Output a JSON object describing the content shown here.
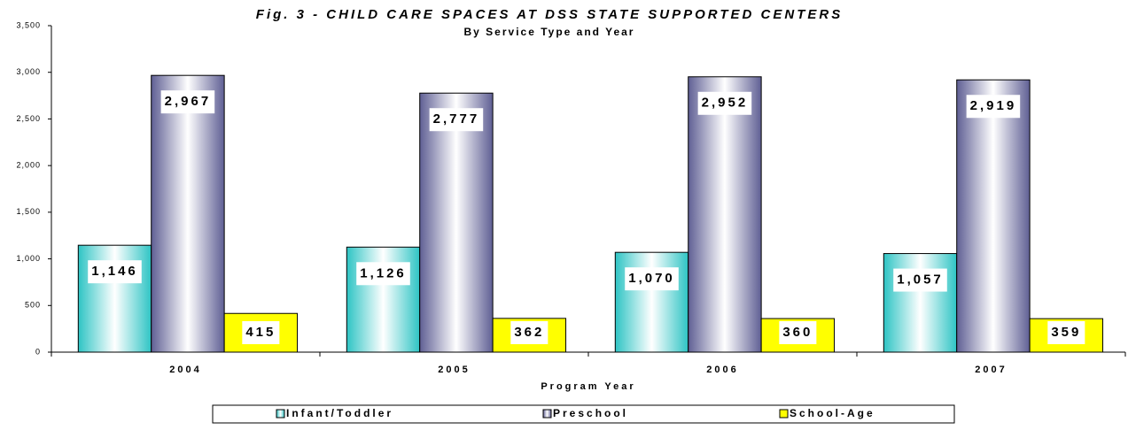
{
  "chart_data": {
    "type": "bar",
    "title": "Fig. 3 - CHILD CARE SPACES AT DSS STATE SUPPORTED CENTERS",
    "subtitle": "By Service Type and Year",
    "x_label": "Program Year",
    "categories": [
      "2004",
      "2005",
      "2006",
      "2007"
    ],
    "series": [
      {
        "name": "Infant/Toddler",
        "color": "#33cccc",
        "values": [
          1146,
          1126,
          1070,
          1057
        ],
        "value_labels": [
          "1,146",
          "1,126",
          "1,070",
          "1,057"
        ]
      },
      {
        "name": "Preschool",
        "color": "#666699",
        "values": [
          2967,
          2777,
          2952,
          2919
        ],
        "value_labels": [
          "2,967",
          "2,777",
          "2,952",
          "2,919"
        ]
      },
      {
        "name": "School-Age",
        "color": "#ffff00",
        "values": [
          415,
          362,
          360,
          359
        ],
        "value_labels": [
          "415",
          "362",
          "360",
          "359"
        ]
      }
    ],
    "ylim": [
      0,
      3500
    ],
    "yticks": [
      0,
      500,
      {
        "value": 1000,
        "label": "1,000"
      },
      {
        "value": 1500,
        "label": "1,500"
      },
      {
        "value": 2000,
        "label": "2,000"
      },
      {
        "value": 2500,
        "label": "2,500"
      },
      {
        "value": 3000,
        "label": "3,000"
      },
      {
        "value": 3500,
        "label": "3,500"
      }
    ],
    "grid": false,
    "legend": "bottom"
  }
}
